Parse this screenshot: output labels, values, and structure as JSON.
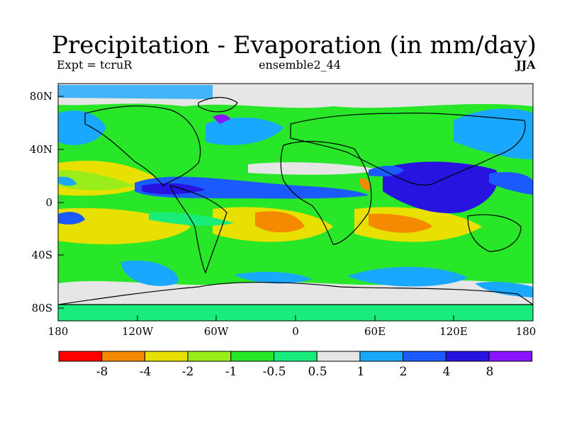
{
  "title": "Precipitation - Evaporation (in mm/day)",
  "subtitle_left": "Expt = tcruR",
  "subtitle_center": "ensemble2_44",
  "subtitle_right": "JJA",
  "map": {
    "lat_ticks": [
      "80N",
      "40N",
      "0",
      "40S",
      "80S"
    ],
    "lon_ticks": [
      "180",
      "120W",
      "60W",
      "0",
      "60E",
      "120E",
      "180"
    ]
  },
  "colorbar": {
    "colors": [
      "#ff0000",
      "#f58a00",
      "#e8e000",
      "#9aec1a",
      "#28e628",
      "#1aec7c",
      "#e6e6e6",
      "#1aa8ff",
      "#1a5aff",
      "#2814e0",
      "#8a16ff"
    ],
    "labels": [
      "-8",
      "-4",
      "-2",
      "-1",
      "-0.5",
      "0.5",
      "1",
      "2",
      "4",
      "8"
    ]
  }
}
